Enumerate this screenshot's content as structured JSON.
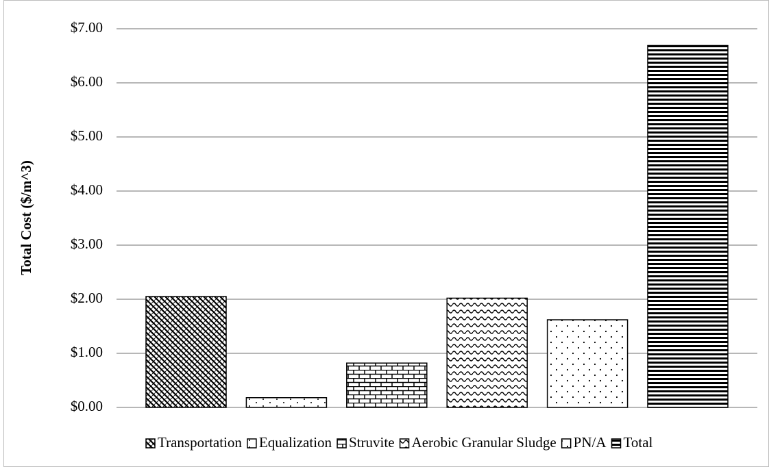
{
  "chart_data": {
    "type": "bar",
    "y_label": "Total Cost ($/m^3)",
    "ylim": [
      0,
      7
    ],
    "yticks": [
      {
        "value": 0,
        "label": "$0.00"
      },
      {
        "value": 1,
        "label": "$1.00"
      },
      {
        "value": 2,
        "label": "$2.00"
      },
      {
        "value": 3,
        "label": "$3.00"
      },
      {
        "value": 4,
        "label": "$4.00"
      },
      {
        "value": 5,
        "label": "$5.00"
      },
      {
        "value": 6,
        "label": "$6.00"
      },
      {
        "value": 7,
        "label": "$7.00"
      }
    ],
    "grid": true,
    "legend": "bottom",
    "series": [
      {
        "name": "Transportation",
        "color": "#000000",
        "values": [
          2.05
        ]
      },
      {
        "name": "Equalization",
        "color": "#000000",
        "values": [
          0.18
        ]
      },
      {
        "name": "Struvite",
        "color": "#000000",
        "values": [
          0.82
        ]
      },
      {
        "name": "Aerobic Granular Sludge",
        "color": "#000000",
        "values": [
          2.02
        ]
      },
      {
        "name": "PN/A",
        "color": "#000000",
        "values": [
          1.62
        ]
      },
      {
        "name": "Total",
        "color": "#000000",
        "values": [
          6.69
        ]
      }
    ]
  }
}
